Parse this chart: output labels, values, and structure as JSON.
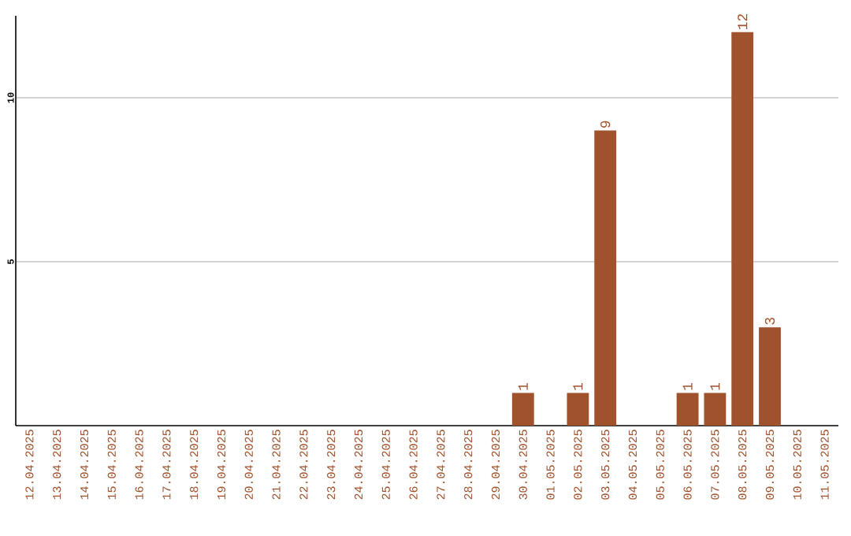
{
  "chart_data": {
    "type": "bar",
    "categories": [
      "12.04.2025",
      "13.04.2025",
      "14.04.2025",
      "15.04.2025",
      "16.04.2025",
      "17.04.2025",
      "18.04.2025",
      "19.04.2025",
      "20.04.2025",
      "21.04.2025",
      "22.04.2025",
      "23.04.2025",
      "24.04.2025",
      "25.04.2025",
      "26.04.2025",
      "27.04.2025",
      "28.04.2025",
      "29.04.2025",
      "30.04.2025",
      "01.05.2025",
      "02.05.2025",
      "03.05.2025",
      "04.05.2025",
      "05.05.2025",
      "06.05.2025",
      "07.05.2025",
      "08.05.2025",
      "09.05.2025",
      "10.05.2025",
      "11.05.2025"
    ],
    "values": [
      0,
      0,
      0,
      0,
      0,
      0,
      0,
      0,
      0,
      0,
      0,
      0,
      0,
      0,
      0,
      0,
      0,
      0,
      1,
      0,
      1,
      9,
      0,
      0,
      1,
      1,
      12,
      3,
      0,
      0
    ],
    "value_labels": [
      null,
      null,
      null,
      null,
      null,
      null,
      null,
      null,
      null,
      null,
      null,
      null,
      null,
      null,
      null,
      null,
      null,
      null,
      "1",
      null,
      "1",
      "9",
      null,
      null,
      "1",
      "1",
      "12",
      "3",
      null,
      null
    ],
    "color": "#a0522d",
    "ylim": [
      0,
      12.5
    ],
    "yticks": [
      5,
      10
    ],
    "grid": "y"
  }
}
